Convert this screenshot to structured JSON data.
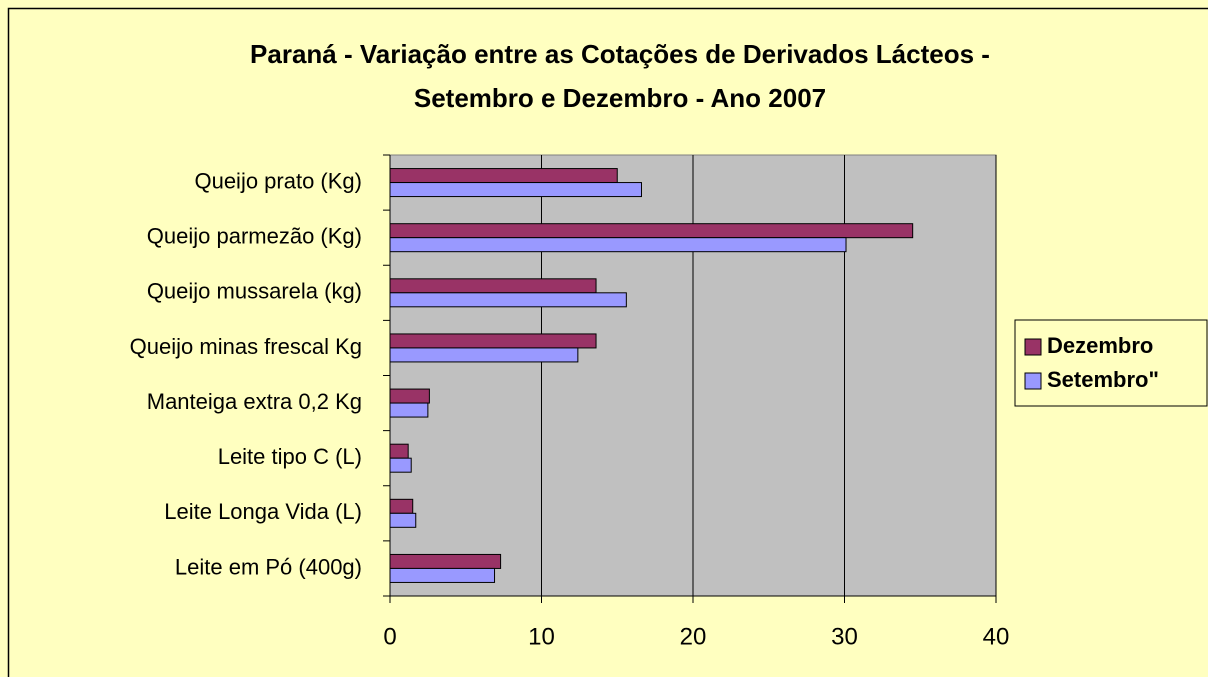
{
  "chart_data": {
    "type": "bar",
    "orientation": "horizontal",
    "title": [
      "Paraná - Variação entre as Cotações de Derivados Lácteos -",
      "Setembro e Dezembro - Ano 2007"
    ],
    "categories": [
      "Queijo prato (Kg)",
      "Queijo parmezão (Kg)",
      "Queijo mussarela (kg)",
      "Queijo minas frescal Kg",
      "Manteiga extra 0,2 Kg",
      "Leite tipo C (L)",
      "Leite Longa Vida (L)",
      "Leite em Pó (400g)"
    ],
    "series": [
      {
        "name": "Dezembro",
        "color": "#993366",
        "values": [
          15.0,
          34.5,
          13.6,
          13.6,
          2.6,
          1.2,
          1.5,
          7.3
        ]
      },
      {
        "name": "Setembro\"",
        "color": "#9999ff",
        "values": [
          16.6,
          30.1,
          15.6,
          12.4,
          2.5,
          1.4,
          1.7,
          6.9
        ]
      }
    ],
    "xlim": [
      0,
      40
    ],
    "xticks": [
      0,
      10,
      20,
      30,
      40
    ],
    "grid": true,
    "legend": "right"
  }
}
